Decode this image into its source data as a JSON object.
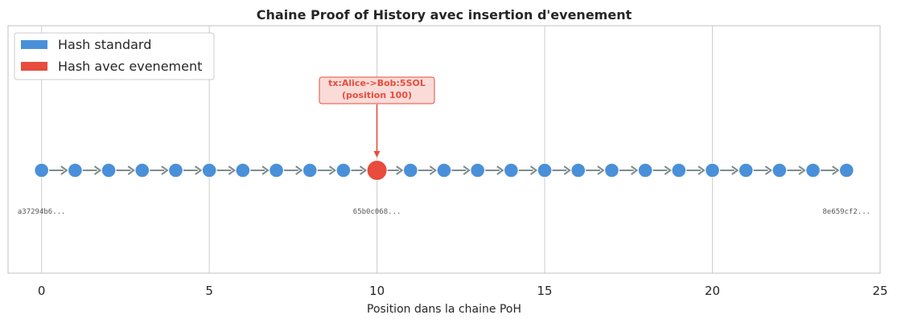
{
  "chart_data": {
    "type": "scatter",
    "title": "Chaine Proof of History avec insertion d'evenement",
    "xlabel": "Position dans la chaine PoH",
    "ylabel": "",
    "xlim": [
      -1,
      25
    ],
    "xticks": [
      0,
      5,
      10,
      15,
      20,
      25
    ],
    "grid": "vertical",
    "legend_position": "upper-left",
    "colors": {
      "standard": "#4a90d9",
      "event": "#e74c3c",
      "arrow": "#7f8c8d",
      "annotation_bg": "#fadbd8",
      "grid": "#cccccc",
      "frame": "#cccccc"
    },
    "series": [
      {
        "name": "Hash standard",
        "color": "#4a90d9",
        "x": [
          0,
          1,
          2,
          3,
          4,
          5,
          6,
          7,
          8,
          9,
          11,
          12,
          13,
          14,
          15,
          16,
          17,
          18,
          19,
          20,
          21,
          22,
          23,
          24
        ]
      },
      {
        "name": "Hash avec evenement",
        "color": "#e74c3c",
        "x": [
          10
        ]
      }
    ],
    "hash_labels": [
      {
        "x": 0,
        "text": "a37294b6..."
      },
      {
        "x": 10,
        "text": "65b0c068..."
      },
      {
        "x": 24,
        "text": "8e659cf2..."
      }
    ],
    "annotation": {
      "x": 10,
      "line1": "tx:Alice->Bob:5SOL",
      "line2": "(position 100)",
      "color": "#e74c3c"
    }
  }
}
